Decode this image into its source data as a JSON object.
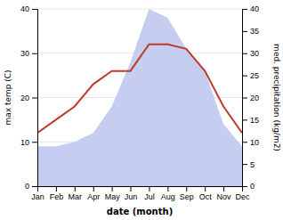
{
  "chart_data": {
    "type": "line",
    "xlabel": "date (month)",
    "ylabel": "max temp (C)",
    "y2label": "med. precipitation (kg/m2)",
    "categories": [
      "Jan",
      "Feb",
      "Mar",
      "Apr",
      "May",
      "Jun",
      "Jul",
      "Aug",
      "Sep",
      "Oct",
      "Nov",
      "Dec"
    ],
    "series": [
      {
        "type": "area",
        "axis": "y2",
        "color": "#c5cef0",
        "values": [
          9,
          9,
          10,
          12,
          18,
          28,
          40,
          38,
          31,
          26,
          14,
          9
        ]
      },
      {
        "type": "line",
        "color": "#c0392b",
        "values": [
          12,
          15,
          18,
          23,
          26,
          26,
          32,
          32,
          31,
          26,
          18,
          12
        ]
      }
    ],
    "ylim": [
      0,
      40
    ],
    "yticks": [
      0,
      10,
      20,
      30,
      40
    ],
    "y2lim": [
      0,
      40
    ],
    "y2ticks": [
      0,
      5,
      10,
      15,
      20,
      25,
      30,
      35,
      40
    ]
  }
}
